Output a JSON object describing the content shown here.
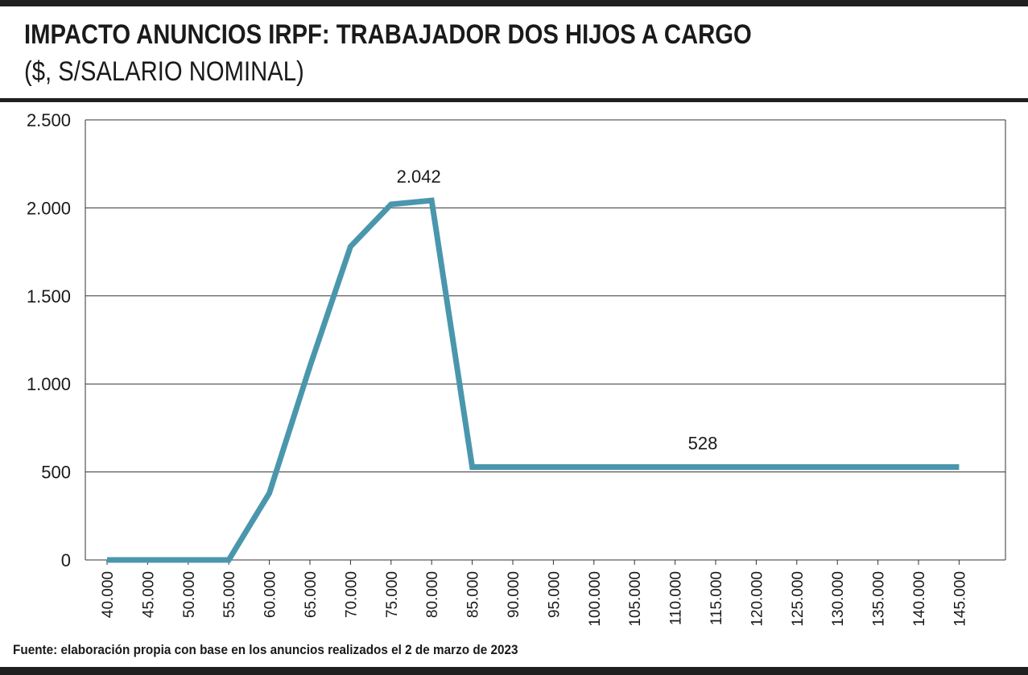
{
  "header": {
    "title": "IMPACTO ANUNCIOS IRPF: TRABAJADOR DOS HIJOS A CARGO",
    "subtitle": "($, S/SALARIO NOMINAL)"
  },
  "footer": {
    "source": "Fuente: elaboración propia con base en los anuncios realizados el 2 de marzo de 2023"
  },
  "colors": {
    "line": "#4a97ad",
    "grid": "#333333",
    "text": "#1a1a1a"
  },
  "chart_data": {
    "type": "line",
    "title": "IMPACTO ANUNCIOS IRPF: TRABAJADOR DOS HIJOS A CARGO",
    "subtitle": "($, S/SALARIO NOMINAL)",
    "xlabel": "",
    "ylabel": "",
    "categories": [
      "40.000",
      "45.000",
      "50.000",
      "55.000",
      "60.000",
      "65.000",
      "70.000",
      "75.000",
      "80.000",
      "85.000",
      "90.000",
      "95.000",
      "100.000",
      "105.000",
      "110.000",
      "115.000",
      "120.000",
      "125.000",
      "130.000",
      "135.000",
      "140.000",
      "145.000"
    ],
    "values": [
      0,
      0,
      0,
      0,
      380,
      1100,
      1780,
      2020,
      2042,
      528,
      528,
      528,
      528,
      528,
      528,
      528,
      528,
      528,
      528,
      528,
      528,
      528
    ],
    "ylim": [
      0,
      2500
    ],
    "yticks": [
      0,
      500,
      1000,
      1500,
      2000,
      2500
    ],
    "ytick_labels": [
      "0",
      "500",
      "1.000",
      "1.500",
      "2.000",
      "2.500"
    ],
    "grid": true,
    "annotations": [
      {
        "text": "2.042",
        "category": "80.000",
        "value": 2042
      },
      {
        "text": "528",
        "category": "115.000",
        "value": 528
      }
    ]
  }
}
